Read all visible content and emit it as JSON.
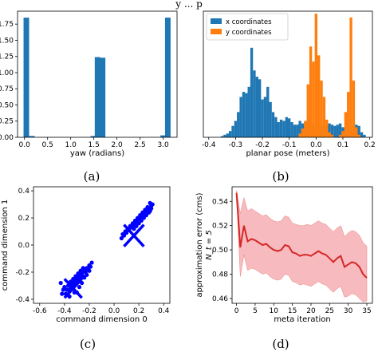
{
  "page_title": "y ... p",
  "chart_data": [
    {
      "id": "a",
      "type": "bar",
      "caption": "(a)",
      "xlabel": "yaw (radians)",
      "ylabel": "",
      "xlim": [
        -0.15,
        3.3
      ],
      "ylim": [
        0,
        1.95
      ],
      "xticks": [
        0.0,
        0.5,
        1.0,
        1.5,
        2.0,
        2.5,
        3.0
      ],
      "xtick_labels": [
        "0.0",
        "0.5",
        "1.0",
        "1.5",
        "2.0",
        "2.5",
        "3.0"
      ],
      "yticks": [
        0.0,
        0.25,
        0.5,
        0.75,
        1.0,
        1.25,
        1.5,
        1.75
      ],
      "ytick_labels": [
        "0.00",
        "0.25",
        "0.50",
        "0.75",
        "1.00",
        "1.25",
        "1.50",
        "1.75"
      ],
      "bin_width": 0.12,
      "bins": [
        {
          "x": 0.04,
          "value": 1.85
        },
        {
          "x": 0.16,
          "value": 0.02
        },
        {
          "x": 1.49,
          "value": 0.02
        },
        {
          "x": 1.58,
          "value": 1.24
        },
        {
          "x": 1.69,
          "value": 1.23
        },
        {
          "x": 3.0,
          "value": 0.03
        },
        {
          "x": 3.1,
          "value": 1.85
        }
      ],
      "color": "#1f77b4"
    },
    {
      "id": "b",
      "type": "bar",
      "caption": "(b)",
      "xlabel": "planar pose (meters)",
      "ylabel": "",
      "xlim": [
        -0.42,
        0.21
      ],
      "ylim": [
        0,
        1.0
      ],
      "xticks": [
        -0.4,
        -0.3,
        -0.2,
        -0.1,
        0.0,
        0.1,
        0.2
      ],
      "xtick_labels": [
        "-0.4",
        "-0.3",
        "-0.2",
        "-0.1",
        "0.0",
        "0.1",
        "0.2"
      ],
      "legend_position": "top-left",
      "bin_width": 0.01,
      "series": [
        {
          "name": "x coordinates",
          "color": "#1f77b4",
          "values": [
            [
              -0.35,
              0.01
            ],
            [
              -0.34,
              0.02
            ],
            [
              -0.33,
              0.03
            ],
            [
              -0.32,
              0.05
            ],
            [
              -0.31,
              0.09
            ],
            [
              -0.3,
              0.13
            ],
            [
              -0.29,
              0.2
            ],
            [
              -0.28,
              0.32
            ],
            [
              -0.27,
              0.36
            ],
            [
              -0.26,
              0.35
            ],
            [
              -0.25,
              0.4
            ],
            [
              -0.24,
              0.71
            ],
            [
              -0.23,
              0.53
            ],
            [
              -0.22,
              0.48
            ],
            [
              -0.21,
              0.46
            ],
            [
              -0.2,
              0.3
            ],
            [
              -0.19,
              0.32
            ],
            [
              -0.18,
              0.4
            ],
            [
              -0.17,
              0.28
            ],
            [
              -0.16,
              0.2
            ],
            [
              -0.15,
              0.16
            ],
            [
              -0.14,
              0.12
            ],
            [
              -0.13,
              0.14
            ],
            [
              -0.12,
              0.13
            ],
            [
              -0.11,
              0.16
            ],
            [
              -0.1,
              0.15
            ],
            [
              -0.09,
              0.12
            ],
            [
              -0.08,
              0.1
            ],
            [
              -0.07,
              0.1
            ],
            [
              -0.06,
              0.13
            ],
            [
              -0.05,
              0.11
            ],
            [
              -0.04,
              0.12
            ],
            [
              -0.03,
              0.15
            ],
            [
              -0.02,
              0.1
            ],
            [
              -0.01,
              0.1
            ],
            [
              0.0,
              0.08
            ],
            [
              0.01,
              0.09
            ],
            [
              0.02,
              0.1
            ],
            [
              0.03,
              0.08
            ],
            [
              0.04,
              0.09
            ],
            [
              0.05,
              0.11
            ],
            [
              0.06,
              0.1
            ],
            [
              0.07,
              0.09
            ],
            [
              0.08,
              0.1
            ],
            [
              0.09,
              0.11
            ],
            [
              0.1,
              0.08
            ],
            [
              0.11,
              0.07
            ],
            [
              0.12,
              0.06
            ],
            [
              0.13,
              0.06
            ],
            [
              0.14,
              0.07
            ],
            [
              0.15,
              0.1
            ],
            [
              0.16,
              0.09
            ],
            [
              0.17,
              0.04
            ],
            [
              0.18,
              0.02
            ]
          ]
        },
        {
          "name": "y coordinates",
          "color": "#ff7f0e",
          "values": [
            [
              -0.06,
              0.03
            ],
            [
              -0.05,
              0.07
            ],
            [
              -0.04,
              0.13
            ],
            [
              -0.03,
              0.42
            ],
            [
              -0.02,
              0.72
            ],
            [
              -0.01,
              0.6
            ],
            [
              0.0,
              0.98
            ],
            [
              0.01,
              0.65
            ],
            [
              0.02,
              0.45
            ],
            [
              0.03,
              0.32
            ],
            [
              0.04,
              0.14
            ],
            [
              0.05,
              0.04
            ],
            [
              0.06,
              0.02
            ],
            [
              0.09,
              0.02
            ],
            [
              0.1,
              0.05
            ],
            [
              0.11,
              0.2
            ],
            [
              0.12,
              0.36
            ],
            [
              0.13,
              0.95
            ],
            [
              0.14,
              0.45
            ],
            [
              0.15,
              0.08
            ],
            [
              0.16,
              0.02
            ]
          ]
        }
      ]
    },
    {
      "id": "c",
      "type": "scatter",
      "caption": "(c)",
      "xlabel": "command dimension 0",
      "ylabel": "command dimension 1",
      "xlim": [
        -0.65,
        0.45
      ],
      "ylim": [
        -0.43,
        0.43
      ],
      "xticks": [
        -0.6,
        -0.4,
        -0.2,
        0.0,
        0.2,
        0.4
      ],
      "xtick_labels": [
        "-0.6",
        "-0.4",
        "-0.2",
        "0.0",
        "0.2",
        "0.4"
      ],
      "yticks": [
        -0.4,
        -0.2,
        0.0,
        0.2,
        0.4
      ],
      "ytick_labels": [
        "-0.4",
        "-0.2",
        "0.0",
        "0.2",
        "0.4"
      ],
      "color": "#0000ff",
      "points": [
        [
          -0.41,
          -0.33
        ],
        [
          -0.4,
          -0.31
        ],
        [
          -0.39,
          -0.36
        ],
        [
          -0.38,
          -0.33
        ],
        [
          -0.37,
          -0.3
        ],
        [
          -0.36,
          -0.34
        ],
        [
          -0.35,
          -0.32
        ],
        [
          -0.34,
          -0.29
        ],
        [
          -0.33,
          -0.31
        ],
        [
          -0.32,
          -0.27
        ],
        [
          -0.31,
          -0.29
        ],
        [
          -0.3,
          -0.25
        ],
        [
          -0.29,
          -0.27
        ],
        [
          -0.28,
          -0.23
        ],
        [
          -0.27,
          -0.25
        ],
        [
          -0.26,
          -0.21
        ],
        [
          -0.25,
          -0.23
        ],
        [
          -0.24,
          -0.19
        ],
        [
          -0.23,
          -0.2
        ],
        [
          -0.22,
          -0.17
        ],
        [
          -0.21,
          -0.18
        ],
        [
          -0.2,
          -0.15
        ],
        [
          -0.19,
          -0.16
        ],
        [
          -0.18,
          -0.13
        ],
        [
          -0.3,
          -0.35
        ],
        [
          -0.28,
          -0.31
        ],
        [
          -0.26,
          -0.28
        ],
        [
          -0.24,
          -0.24
        ],
        [
          -0.22,
          -0.22
        ],
        [
          -0.2,
          -0.19
        ],
        [
          -0.35,
          -0.27
        ],
        [
          -0.33,
          -0.25
        ],
        [
          -0.31,
          -0.23
        ],
        [
          -0.29,
          -0.21
        ],
        [
          -0.27,
          -0.19
        ],
        [
          -0.25,
          -0.17
        ],
        [
          -0.42,
          -0.36
        ],
        [
          -0.36,
          -0.38
        ],
        [
          -0.32,
          -0.35
        ],
        [
          -0.43,
          -0.28
        ],
        [
          0.06,
          0.05
        ],
        [
          0.08,
          0.07
        ],
        [
          0.1,
          0.09
        ],
        [
          0.12,
          0.11
        ],
        [
          0.14,
          0.13
        ],
        [
          0.16,
          0.15
        ],
        [
          0.18,
          0.17
        ],
        [
          0.2,
          0.19
        ],
        [
          0.22,
          0.21
        ],
        [
          0.24,
          0.23
        ],
        [
          0.26,
          0.25
        ],
        [
          0.28,
          0.27
        ],
        [
          0.3,
          0.29
        ],
        [
          0.29,
          0.31
        ],
        [
          0.27,
          0.28
        ],
        [
          0.25,
          0.26
        ],
        [
          0.23,
          0.24
        ],
        [
          0.21,
          0.22
        ],
        [
          0.19,
          0.2
        ],
        [
          0.17,
          0.18
        ],
        [
          0.15,
          0.16
        ],
        [
          0.13,
          0.14
        ],
        [
          0.11,
          0.12
        ],
        [
          0.09,
          0.1
        ],
        [
          0.07,
          0.08
        ],
        [
          0.3,
          0.27
        ],
        [
          0.28,
          0.24
        ],
        [
          0.26,
          0.22
        ],
        [
          0.24,
          0.2
        ],
        [
          0.22,
          0.18
        ],
        [
          0.2,
          0.16
        ],
        [
          0.18,
          0.14
        ],
        [
          0.16,
          0.12
        ],
        [
          0.31,
          0.3
        ],
        [
          0.29,
          0.25
        ]
      ],
      "cross_markers": [
        {
          "x": -0.33,
          "y": -0.32,
          "size": 0.07
        },
        {
          "x": 0.16,
          "y": 0.07,
          "size": 0.08
        }
      ]
    },
    {
      "id": "d",
      "type": "line",
      "caption": "(d)",
      "xlabel": "meta iteration",
      "ylabel": "approximation error (cms)",
      "ylabel2": "N_t = 5",
      "xlim": [
        -1.2,
        36.5
      ],
      "ylim": [
        0.456,
        0.552
      ],
      "xticks": [
        0,
        5,
        10,
        15,
        20,
        25,
        30,
        35
      ],
      "xtick_labels": [
        "0",
        "5",
        "10",
        "15",
        "20",
        "25",
        "30",
        "35"
      ],
      "yticks": [
        0.46,
        0.48,
        0.5,
        0.52,
        0.54
      ],
      "ytick_labels": [
        "0.46",
        "0.48",
        "0.50",
        "0.52",
        "0.54"
      ],
      "series": [
        {
          "name": "",
          "color": "#d62728",
          "x": [
            0,
            1,
            2,
            3,
            4,
            5,
            6,
            7,
            8,
            9,
            10,
            11,
            12,
            13,
            14,
            15,
            16,
            17,
            18,
            19,
            20,
            21,
            22,
            23,
            24,
            25,
            26,
            27,
            28,
            29,
            30,
            31,
            32,
            33,
            34,
            35
          ],
          "mean": [
            0.547,
            0.502,
            0.52,
            0.507,
            0.509,
            0.508,
            0.506,
            0.504,
            0.505,
            0.502,
            0.5,
            0.499,
            0.5,
            0.504,
            0.503,
            0.498,
            0.497,
            0.495,
            0.496,
            0.496,
            0.495,
            0.497,
            0.499,
            0.497,
            0.496,
            0.493,
            0.49,
            0.493,
            0.495,
            0.486,
            0.488,
            0.49,
            0.489,
            0.486,
            0.48,
            0.477
          ],
          "upper": [
            0.549,
            0.53,
            0.543,
            0.532,
            0.534,
            0.532,
            0.53,
            0.528,
            0.529,
            0.526,
            0.524,
            0.523,
            0.524,
            0.528,
            0.527,
            0.522,
            0.521,
            0.52,
            0.52,
            0.521,
            0.52,
            0.522,
            0.524,
            0.522,
            0.521,
            0.518,
            0.515,
            0.518,
            0.52,
            0.511,
            0.514,
            0.516,
            0.515,
            0.512,
            0.506,
            0.503
          ],
          "lower": [
            0.545,
            0.478,
            0.496,
            0.483,
            0.485,
            0.484,
            0.482,
            0.48,
            0.481,
            0.478,
            0.476,
            0.475,
            0.476,
            0.48,
            0.479,
            0.474,
            0.473,
            0.471,
            0.472,
            0.471,
            0.47,
            0.472,
            0.474,
            0.472,
            0.471,
            0.468,
            0.465,
            0.468,
            0.47,
            0.461,
            0.462,
            0.464,
            0.463,
            0.46,
            0.457,
            0.458
          ]
        }
      ]
    }
  ]
}
